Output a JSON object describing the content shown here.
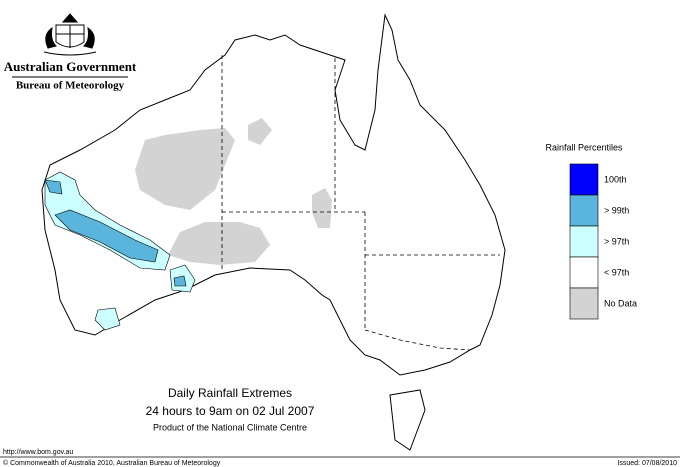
{
  "header": {
    "government": "Australian Government",
    "bureau": "Bureau of Meteorology"
  },
  "legend": {
    "title": "Rainfall Percentiles",
    "items": [
      {
        "label": "100th",
        "color": "#0000ff"
      },
      {
        "label": "> 99th",
        "color": "#5ab4dc"
      },
      {
        "label": "> 97th",
        "color": "#ccffff"
      },
      {
        "label": "< 97th",
        "color": "#ffffff"
      },
      {
        "label": "No Data",
        "color": "#d3d3d3"
      }
    ]
  },
  "caption": {
    "title": "Daily Rainfall Extremes",
    "period": "24 hours to 9am on 02 Jul 2007",
    "source": "Product of the National Climate Centre"
  },
  "footer": {
    "url": "http://www.bom.gov.au",
    "copyright": "© Commonwealth of Australia 2010, Australian Bureau of Meteorology",
    "issued": "Issued: 07/08/2010"
  }
}
